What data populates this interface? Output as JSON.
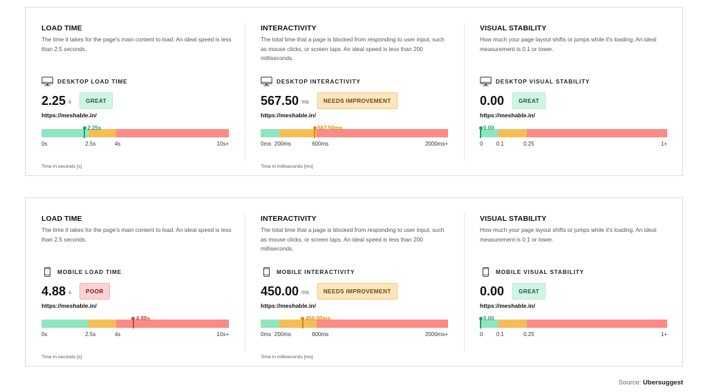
{
  "colors": {
    "green": "#8fe6bf",
    "orange": "#f7bd55",
    "red": "#fd8a85",
    "marker_green": "#1f9e6e",
    "marker_orange": "#d98a0e",
    "marker_red": "#c8453f"
  },
  "cards": [
    {
      "device": "desktop",
      "metrics": [
        {
          "title": "LOAD TIME",
          "description": "The time it takes for the page's main content to load. An ideal speed is less than 2.5 seconds.",
          "device_icon": "desktop-monitor-icon",
          "device_label": "DESKTOP LOAD TIME",
          "value": "2.25",
          "unit": "s",
          "badge": "GREAT",
          "badge_type": "great",
          "url": "https://meshable.in/",
          "marker_label": "2.25s",
          "marker_color": "marker_green",
          "marker_fraction": 0.23,
          "segments": [
            0.25,
            0.15,
            0.6
          ],
          "ticks": [
            {
              "label": "0s",
              "pos": 0
            },
            {
              "label": "2.5s",
              "pos": 0.25
            },
            {
              "label": "4s",
              "pos": 0.4
            },
            {
              "label": "10s+",
              "pos": 1
            }
          ],
          "axis_caption": "Time in seconds [s]"
        },
        {
          "title": "INTERACTIVITY",
          "description": "The total time that a page is blocked from responding to user input, such as mouse clicks, or screen taps. An ideal speed is less than 200 milliseconds.",
          "device_icon": "desktop-monitor-icon",
          "device_label": "DESKTOP INTERACTIVITY",
          "value": "567.50",
          "unit": "ms",
          "badge": "NEEDS IMPROVEMENT",
          "badge_type": "needs",
          "url": "https://meshable.in/",
          "marker_label": "567.50ms",
          "marker_color": "marker_orange",
          "marker_fraction": 0.288,
          "segments": [
            0.1,
            0.2,
            0.7
          ],
          "ticks": [
            {
              "label": "0ms",
              "pos": 0
            },
            {
              "label": "200ms",
              "pos": 0.1
            },
            {
              "label": "600ms",
              "pos": 0.3
            },
            {
              "label": "2000ms+",
              "pos": 1
            }
          ],
          "axis_caption": "Time in milliseconds [ms]"
        },
        {
          "title": "VISUAL STABILITY",
          "description": "How much your page layout shifts or jumps while it's loading. An ideal measurement is 0.1 or lower.",
          "device_icon": "desktop-monitor-icon",
          "device_label": "DESKTOP VISUAL STABILITY",
          "value": "0.00",
          "unit": "",
          "badge": "GREAT",
          "badge_type": "great",
          "url": "https://meshable.in/",
          "marker_label": "0.00",
          "marker_color": "marker_green",
          "marker_fraction": 0.0,
          "segments": [
            0.1,
            0.15,
            0.75
          ],
          "ticks": [
            {
              "label": "0",
              "pos": 0
            },
            {
              "label": "0.1",
              "pos": 0.1
            },
            {
              "label": "0.25",
              "pos": 0.25
            },
            {
              "label": "1+",
              "pos": 1
            }
          ],
          "axis_caption": ""
        }
      ]
    },
    {
      "device": "mobile",
      "metrics": [
        {
          "title": "LOAD TIME",
          "description": "The time it takes for the page's main content to load. An ideal speed is less than 2.5 seconds.",
          "device_icon": "mobile-phone-icon",
          "device_label": "MOBILE LOAD TIME",
          "value": "4.88",
          "unit": "s",
          "badge": "POOR",
          "badge_type": "poor",
          "url": "https://meshable.in/",
          "marker_label": "4.88s",
          "marker_color": "marker_red",
          "marker_fraction": 0.49,
          "segments": [
            0.25,
            0.15,
            0.6
          ],
          "ticks": [
            {
              "label": "0s",
              "pos": 0
            },
            {
              "label": "2.5s",
              "pos": 0.25
            },
            {
              "label": "4s",
              "pos": 0.4
            },
            {
              "label": "10s+",
              "pos": 1
            }
          ],
          "axis_caption": "Time in seconds [s]"
        },
        {
          "title": "INTERACTIVITY",
          "description": "The total time that a page is blocked from responding to user input, such as mouse clicks, or screen taps. An ideal speed is less than 200 milliseconds.",
          "device_icon": "mobile-phone-icon",
          "device_label": "MOBILE INTERACTIVITY",
          "value": "450.00",
          "unit": "ms",
          "badge": "NEEDS IMPROVEMENT",
          "badge_type": "needs",
          "url": "https://meshable.in/",
          "marker_label": "450.00ms",
          "marker_color": "marker_orange",
          "marker_fraction": 0.225,
          "segments": [
            0.1,
            0.2,
            0.7
          ],
          "ticks": [
            {
              "label": "0ms",
              "pos": 0
            },
            {
              "label": "200ms",
              "pos": 0.1
            },
            {
              "label": "600ms",
              "pos": 0.3
            },
            {
              "label": "2000ms+",
              "pos": 1
            }
          ],
          "axis_caption": "Time in milliseconds [ms]"
        },
        {
          "title": "VISUAL STABILITY",
          "description": "How much your page layout shifts or jumps while it's loading. An ideal measurement is 0.1 or lower.",
          "device_icon": "mobile-phone-icon",
          "device_label": "MOBILE VISUAL STABILITY",
          "value": "0.00",
          "unit": "",
          "badge": "GREAT",
          "badge_type": "great",
          "url": "https://meshable.in/",
          "marker_label": "0.00",
          "marker_color": "marker_green",
          "marker_fraction": 0.0,
          "segments": [
            0.1,
            0.15,
            0.75
          ],
          "ticks": [
            {
              "label": "0",
              "pos": 0
            },
            {
              "label": "0.1",
              "pos": 0.1
            },
            {
              "label": "0.25",
              "pos": 0.25
            },
            {
              "label": "1+",
              "pos": 1
            }
          ],
          "axis_caption": ""
        }
      ]
    }
  ],
  "source": {
    "prefix": "Source:",
    "name": "Ubersuggest"
  }
}
